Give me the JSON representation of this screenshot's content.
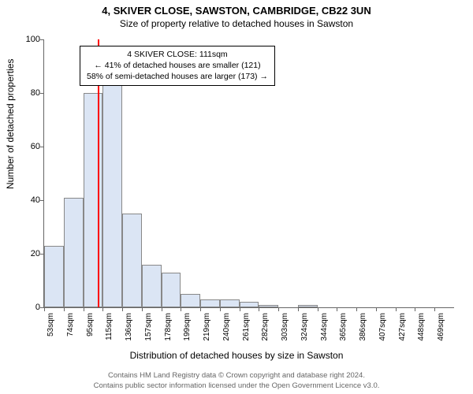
{
  "title": "4, SKIVER CLOSE, SAWSTON, CAMBRIDGE, CB22 3UN",
  "subtitle": "Size of property relative to detached houses in Sawston",
  "ylabel": "Number of detached properties",
  "xlabel": "Distribution of detached houses by size in Sawston",
  "footer_line1": "Contains HM Land Registry data © Crown copyright and database right 2024.",
  "footer_line2": "Contains public sector information licensed under the Open Government Licence v3.0.",
  "info_box": {
    "line1": "4 SKIVER CLOSE: 111sqm",
    "line2": "← 41% of detached houses are smaller (121)",
    "line3": "58% of semi-detached houses are larger (173) →"
  },
  "chart": {
    "type": "histogram",
    "bar_fill": "#dbe5f4",
    "bar_border": "#888888",
    "marker_color": "#ff0000",
    "marker_x": 111,
    "background": "#ffffff",
    "axis_color": "#666666",
    "ylim": [
      0,
      100
    ],
    "ytick_step": 20,
    "x_start": 53,
    "x_bin_width": 21,
    "n_bins": 21,
    "x_tick_labels": [
      "53sqm",
      "74sqm",
      "95sqm",
      "115sqm",
      "136sqm",
      "157sqm",
      "178sqm",
      "199sqm",
      "219sqm",
      "240sqm",
      "261sqm",
      "282sqm",
      "303sqm",
      "324sqm",
      "344sqm",
      "365sqm",
      "386sqm",
      "407sqm",
      "427sqm",
      "448sqm",
      "469sqm"
    ],
    "values": [
      23,
      41,
      80,
      83,
      35,
      16,
      13,
      5,
      3,
      3,
      2,
      1,
      0,
      1,
      0,
      0,
      0,
      0,
      0,
      0,
      0
    ],
    "title_fontsize": 13,
    "subtitle_fontsize": 12,
    "label_fontsize": 12,
    "tick_fontsize": 11,
    "xtick_fontsize": 10,
    "info_fontsize": 10.5,
    "footer_fontsize": 9.5,
    "footer_color": "#666666"
  }
}
